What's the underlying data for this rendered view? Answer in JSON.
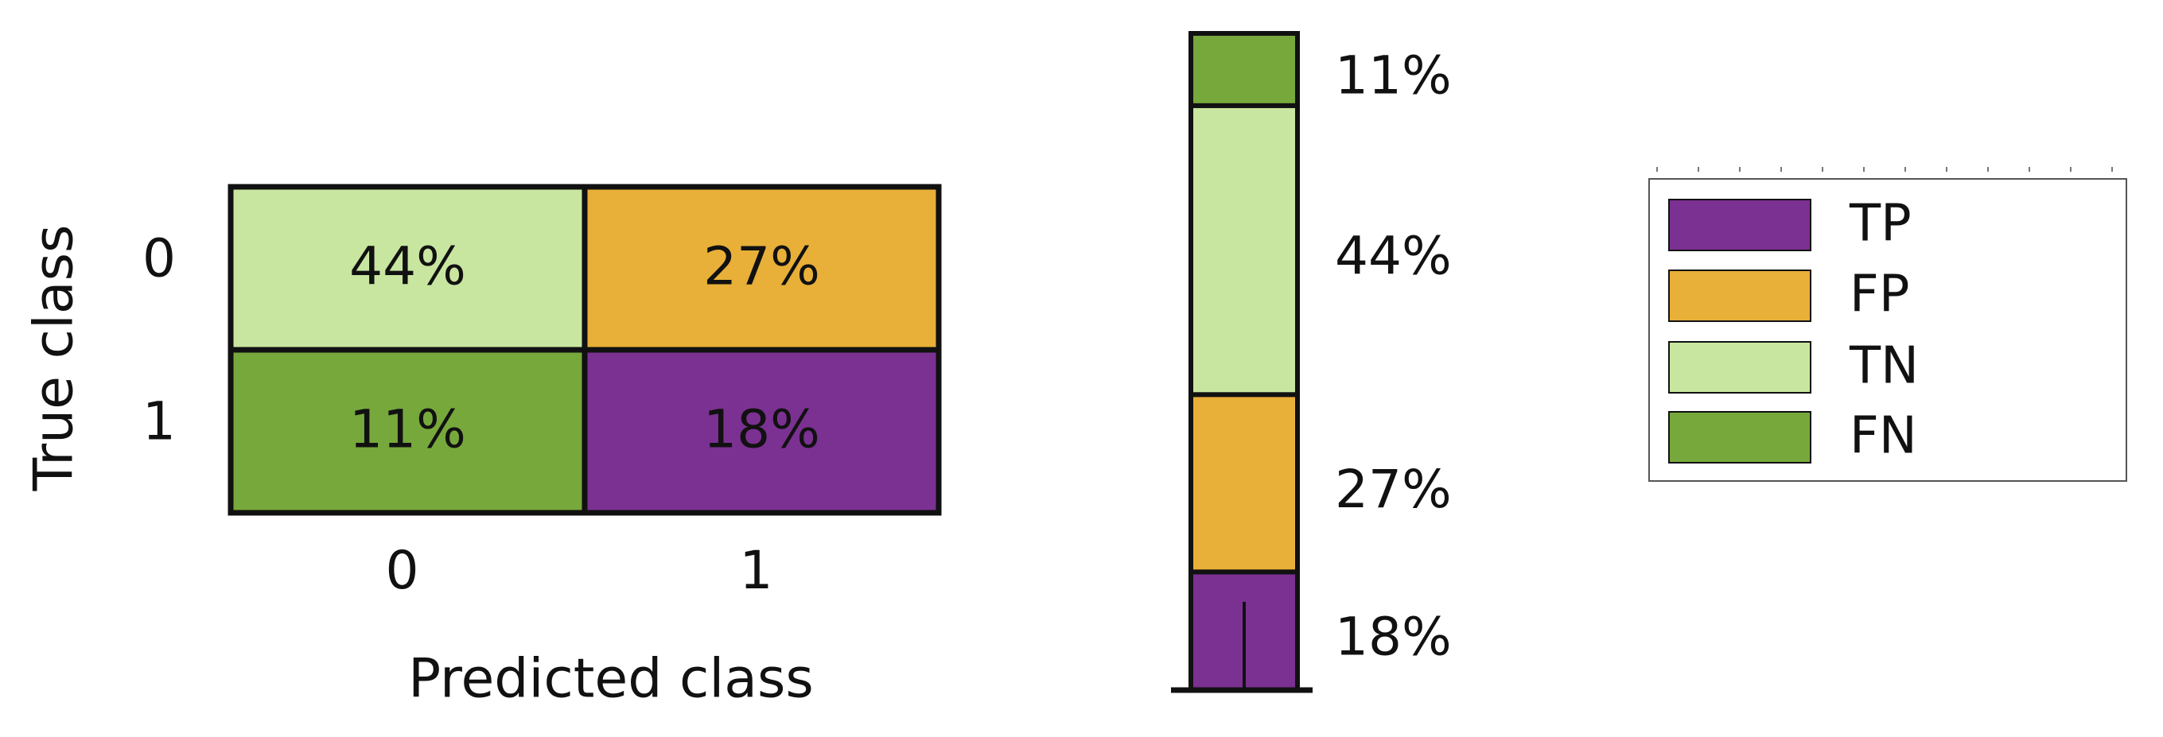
{
  "colors": {
    "TP": "#7b3191",
    "FP": "#e8b038",
    "TN": "#c8e6a0",
    "FN": "#77a83c"
  },
  "chart_data": [
    {
      "type": "heatmap",
      "xlabel": "Predicted class",
      "ylabel": "True class",
      "x_categories": [
        "0",
        "1"
      ],
      "y_categories": [
        "0",
        "1"
      ],
      "cells": [
        {
          "true": "0",
          "predicted": "0",
          "value": 44,
          "label": "44%",
          "kind": "TN"
        },
        {
          "true": "0",
          "predicted": "1",
          "value": 27,
          "label": "27%",
          "kind": "FP"
        },
        {
          "true": "1",
          "predicted": "0",
          "value": 11,
          "label": "11%",
          "kind": "FN"
        },
        {
          "true": "1",
          "predicted": "1",
          "value": 18,
          "label": "18%",
          "kind": "TP"
        }
      ]
    },
    {
      "type": "bar",
      "stacked": true,
      "series": [
        {
          "kind": "TP",
          "value": 18,
          "label": "18%"
        },
        {
          "kind": "FP",
          "value": 27,
          "label": "27%"
        },
        {
          "kind": "TN",
          "value": 44,
          "label": "44%"
        },
        {
          "kind": "FN",
          "value": 11,
          "label": "11%"
        }
      ]
    }
  ],
  "legend": {
    "entries": [
      "TP",
      "FP",
      "TN",
      "FN"
    ]
  }
}
